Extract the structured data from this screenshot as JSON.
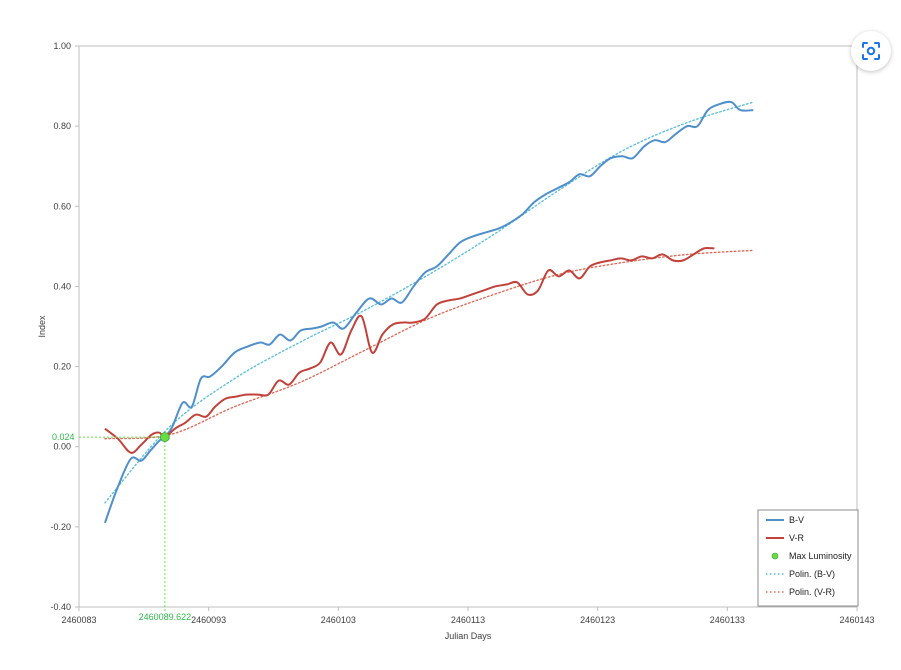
{
  "lens_button": {
    "icon": "lens-search-icon"
  },
  "chart_data": {
    "type": "line",
    "title": "",
    "xlabel": "Julian Days",
    "ylabel": "Index",
    "xlim": [
      2460083,
      2460143
    ],
    "ylim": [
      -0.4,
      1.0
    ],
    "x_ticks": [
      "2460083",
      "2460093",
      "2460103",
      "2460113",
      "2460123",
      "2460133",
      "2460143"
    ],
    "y_ticks": [
      "-0.40",
      "-0.20",
      "0.00",
      "0.20",
      "0.40",
      "0.60",
      "0.80",
      "1.00"
    ],
    "grid": false,
    "legend_position": "bottom-right",
    "series": [
      {
        "name": "B-V",
        "color": "#4f8fca",
        "style": "solid",
        "points": [
          [
            2460085,
            -0.19
          ],
          [
            2460086,
            -0.1
          ],
          [
            2460087,
            -0.03
          ],
          [
            2460087.8,
            -0.035
          ],
          [
            2460088.5,
            -0.01
          ],
          [
            2460089.2,
            0.015
          ],
          [
            2460089.622,
            0.024
          ],
          [
            2460090.2,
            0.05
          ],
          [
            2460091,
            0.11
          ],
          [
            2460091.7,
            0.1
          ],
          [
            2460092.4,
            0.17
          ],
          [
            2460093.1,
            0.175
          ],
          [
            2460094,
            0.2
          ],
          [
            2460095,
            0.235
          ],
          [
            2460096,
            0.25
          ],
          [
            2460097,
            0.26
          ],
          [
            2460097.7,
            0.255
          ],
          [
            2460098.5,
            0.28
          ],
          [
            2460099.3,
            0.265
          ],
          [
            2460100.1,
            0.29
          ],
          [
            2460101,
            0.295
          ],
          [
            2460101.7,
            0.3
          ],
          [
            2460102.6,
            0.31
          ],
          [
            2460103.4,
            0.295
          ],
          [
            2460104.4,
            0.335
          ],
          [
            2460105.4,
            0.37
          ],
          [
            2460106.3,
            0.355
          ],
          [
            2460107.1,
            0.37
          ],
          [
            2460107.9,
            0.36
          ],
          [
            2460108.8,
            0.4
          ],
          [
            2460109.7,
            0.435
          ],
          [
            2460110.6,
            0.45
          ],
          [
            2460111.5,
            0.48
          ],
          [
            2460112.4,
            0.51
          ],
          [
            2460113.4,
            0.525
          ],
          [
            2460114.4,
            0.535
          ],
          [
            2460115.4,
            0.545
          ],
          [
            2460116.3,
            0.56
          ],
          [
            2460117.2,
            0.58
          ],
          [
            2460118.1,
            0.61
          ],
          [
            2460119,
            0.63
          ],
          [
            2460119.9,
            0.645
          ],
          [
            2460120.8,
            0.66
          ],
          [
            2460121.6,
            0.68
          ],
          [
            2460122.4,
            0.675
          ],
          [
            2460123.2,
            0.7
          ],
          [
            2460124,
            0.72
          ],
          [
            2460124.9,
            0.725
          ],
          [
            2460125.7,
            0.72
          ],
          [
            2460126.6,
            0.75
          ],
          [
            2460127.4,
            0.765
          ],
          [
            2460128.2,
            0.76
          ],
          [
            2460129,
            0.78
          ],
          [
            2460129.9,
            0.8
          ],
          [
            2460130.7,
            0.8
          ],
          [
            2460131.5,
            0.84
          ],
          [
            2460132.4,
            0.855
          ],
          [
            2460133.3,
            0.86
          ],
          [
            2460134,
            0.84
          ],
          [
            2460135,
            0.84
          ]
        ]
      },
      {
        "name": "V-R",
        "color": "#c0423a",
        "style": "solid",
        "points": [
          [
            2460085,
            0.045
          ],
          [
            2460086,
            0.02
          ],
          [
            2460087,
            -0.015
          ],
          [
            2460087.8,
            0.005
          ],
          [
            2460088.6,
            0.03
          ],
          [
            2460089.2,
            0.035
          ],
          [
            2460089.622,
            0.024
          ],
          [
            2460090.4,
            0.045
          ],
          [
            2460091.2,
            0.06
          ],
          [
            2460092,
            0.08
          ],
          [
            2460092.8,
            0.075
          ],
          [
            2460093.5,
            0.1
          ],
          [
            2460094.3,
            0.12
          ],
          [
            2460095.1,
            0.125
          ],
          [
            2460095.9,
            0.13
          ],
          [
            2460096.8,
            0.13
          ],
          [
            2460097.6,
            0.13
          ],
          [
            2460098.4,
            0.165
          ],
          [
            2460099.2,
            0.155
          ],
          [
            2460100,
            0.185
          ],
          [
            2460100.8,
            0.195
          ],
          [
            2460101.6,
            0.21
          ],
          [
            2460102.4,
            0.26
          ],
          [
            2460103.2,
            0.23
          ],
          [
            2460104,
            0.29
          ],
          [
            2460104.8,
            0.325
          ],
          [
            2460105.6,
            0.235
          ],
          [
            2460106.4,
            0.28
          ],
          [
            2460107.2,
            0.305
          ],
          [
            2460108,
            0.31
          ],
          [
            2460108.8,
            0.31
          ],
          [
            2460109.7,
            0.32
          ],
          [
            2460110.6,
            0.355
          ],
          [
            2460111.5,
            0.365
          ],
          [
            2460112.4,
            0.37
          ],
          [
            2460113.3,
            0.38
          ],
          [
            2460114.2,
            0.39
          ],
          [
            2460115.1,
            0.4
          ],
          [
            2460116,
            0.405
          ],
          [
            2460116.8,
            0.41
          ],
          [
            2460117.6,
            0.38
          ],
          [
            2460118.4,
            0.39
          ],
          [
            2460119.2,
            0.44
          ],
          [
            2460120,
            0.425
          ],
          [
            2460120.8,
            0.44
          ],
          [
            2460121.6,
            0.42
          ],
          [
            2460122.4,
            0.45
          ],
          [
            2460123.2,
            0.46
          ],
          [
            2460124,
            0.465
          ],
          [
            2460124.8,
            0.47
          ],
          [
            2460125.6,
            0.465
          ],
          [
            2460126.4,
            0.475
          ],
          [
            2460127.2,
            0.47
          ],
          [
            2460128,
            0.48
          ],
          [
            2460128.8,
            0.465
          ],
          [
            2460129.6,
            0.465
          ],
          [
            2460130.4,
            0.48
          ],
          [
            2460131.2,
            0.495
          ],
          [
            2460132,
            0.495
          ]
        ]
      }
    ],
    "trendlines": [
      {
        "name": "Polin. (B-V)",
        "color": "#5bc0de",
        "style": "dotted",
        "points": [
          [
            2460085,
            -0.14
          ],
          [
            2460090,
            0.05
          ],
          [
            2460095,
            0.17
          ],
          [
            2460100,
            0.26
          ],
          [
            2460105,
            0.34
          ],
          [
            2460110,
            0.43
          ],
          [
            2460115,
            0.53
          ],
          [
            2460120,
            0.64
          ],
          [
            2460125,
            0.74
          ],
          [
            2460130,
            0.81
          ],
          [
            2460135,
            0.86
          ]
        ]
      },
      {
        "name": "Polin. (V-R)",
        "color": "#e06b5a",
        "style": "dotted",
        "points": [
          [
            2460085,
            0.02
          ],
          [
            2460090,
            0.03
          ],
          [
            2460095,
            0.1
          ],
          [
            2460100,
            0.16
          ],
          [
            2460105,
            0.24
          ],
          [
            2460110,
            0.32
          ],
          [
            2460115,
            0.38
          ],
          [
            2460120,
            0.43
          ],
          [
            2460125,
            0.46
          ],
          [
            2460130,
            0.48
          ],
          [
            2460135,
            0.49
          ]
        ]
      }
    ],
    "max_luminosity": {
      "name": "Max Luminosity",
      "color": "#66dd44",
      "x": 2460089.622,
      "y": 0.024,
      "x_label": "2460089.622",
      "y_label": "0.024"
    }
  }
}
